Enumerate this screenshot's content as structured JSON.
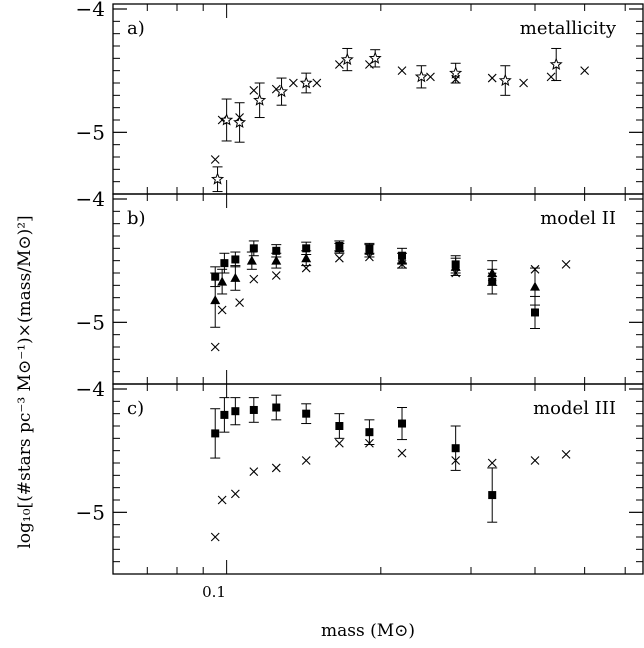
{
  "figure": {
    "xlabel": "mass (M⊙)",
    "ylabel": "log₁₀[(#stars pc⁻³ M⊙⁻¹)×(mass/M⊙)²]",
    "xtick_label": "0.1"
  },
  "chart_data": [
    {
      "type": "scatter",
      "panel_label": "a)",
      "title": "metallicity",
      "xlog": true,
      "xlim": [
        0.06,
        0.65
      ],
      "ylim": [
        -5.5,
        -4.0
      ],
      "yticks": [
        "-4",
        "-5"
      ],
      "series": [
        {
          "marker": "cross",
          "points": [
            [
              0.095,
              -5.22
            ],
            [
              0.098,
              -4.9
            ],
            [
              0.106,
              -4.88
            ],
            [
              0.113,
              -4.66
            ],
            [
              0.125,
              -4.65
            ],
            [
              0.135,
              -4.6
            ],
            [
              0.15,
              -4.6
            ],
            [
              0.166,
              -4.45
            ],
            [
              0.19,
              -4.45
            ],
            [
              0.22,
              -4.5
            ],
            [
              0.25,
              -4.55
            ],
            [
              0.28,
              -4.57
            ],
            [
              0.33,
              -4.56
            ],
            [
              0.38,
              -4.6
            ],
            [
              0.43,
              -4.55
            ],
            [
              0.5,
              -4.5
            ]
          ]
        },
        {
          "marker": "star",
          "points": [
            [
              0.096,
              -5.38
            ],
            [
              0.1,
              -4.9
            ],
            [
              0.106,
              -4.92
            ],
            [
              0.116,
              -4.74
            ],
            [
              0.128,
              -4.67
            ],
            [
              0.143,
              -4.6
            ],
            [
              0.172,
              -4.41
            ],
            [
              0.195,
              -4.4
            ],
            [
              0.24,
              -4.55
            ],
            [
              0.28,
              -4.52
            ],
            [
              0.35,
              -4.58
            ],
            [
              0.44,
              -4.45
            ]
          ],
          "errors": [
            0.1,
            0.17,
            0.16,
            0.14,
            0.11,
            0.08,
            0.09,
            0.07,
            0.09,
            0.08,
            0.12,
            0.13
          ]
        }
      ]
    },
    {
      "type": "scatter",
      "panel_label": "b)",
      "title": "model II",
      "xlog": true,
      "xlim": [
        0.06,
        0.65
      ],
      "ylim": [
        -5.5,
        -4.0
      ],
      "yticks": [
        "-4",
        "-5"
      ],
      "series": [
        {
          "marker": "cross",
          "points": [
            [
              0.095,
              -5.2
            ],
            [
              0.098,
              -4.9
            ],
            [
              0.106,
              -4.84
            ],
            [
              0.113,
              -4.65
            ],
            [
              0.125,
              -4.62
            ],
            [
              0.143,
              -4.56
            ],
            [
              0.166,
              -4.48
            ],
            [
              0.19,
              -4.47
            ],
            [
              0.22,
              -4.53
            ],
            [
              0.28,
              -4.6
            ],
            [
              0.33,
              -4.63
            ],
            [
              0.4,
              -4.57
            ],
            [
              0.46,
              -4.53
            ]
          ]
        },
        {
          "marker": "triangle",
          "points": [
            [
              0.095,
              -4.82
            ],
            [
              0.098,
              -4.67
            ],
            [
              0.104,
              -4.64
            ],
            [
              0.112,
              -4.5
            ],
            [
              0.125,
              -4.5
            ],
            [
              0.143,
              -4.48
            ],
            [
              0.166,
              -4.4
            ],
            [
              0.19,
              -4.42
            ],
            [
              0.22,
              -4.5
            ],
            [
              0.28,
              -4.55
            ],
            [
              0.33,
              -4.6
            ],
            [
              0.4,
              -4.71
            ]
          ],
          "errors": [
            0.22,
            0.1,
            0.1,
            0.07,
            0.06,
            0.06,
            0.04,
            0.05,
            0.06,
            0.07,
            0.1,
            0.15
          ]
        },
        {
          "marker": "square",
          "points": [
            [
              0.095,
              -4.63
            ],
            [
              0.099,
              -4.52
            ],
            [
              0.104,
              -4.49
            ],
            [
              0.113,
              -4.4
            ],
            [
              0.125,
              -4.42
            ],
            [
              0.143,
              -4.4
            ],
            [
              0.166,
              -4.38
            ],
            [
              0.19,
              -4.4
            ],
            [
              0.22,
              -4.46
            ],
            [
              0.28,
              -4.53
            ],
            [
              0.33,
              -4.67
            ],
            [
              0.4,
              -4.92
            ]
          ],
          "errors": [
            0.08,
            0.08,
            0.06,
            0.06,
            0.05,
            0.05,
            0.04,
            0.04,
            0.06,
            0.07,
            0.1,
            0.13
          ]
        }
      ]
    },
    {
      "type": "scatter",
      "panel_label": "c)",
      "title": "model III",
      "xlog": true,
      "xlim": [
        0.06,
        0.65
      ],
      "ylim": [
        -5.5,
        -4.0
      ],
      "yticks": [
        "-4",
        "-5"
      ],
      "series": [
        {
          "marker": "cross",
          "points": [
            [
              0.095,
              -5.2
            ],
            [
              0.098,
              -4.9
            ],
            [
              0.104,
              -4.85
            ],
            [
              0.113,
              -4.67
            ],
            [
              0.125,
              -4.64
            ],
            [
              0.143,
              -4.58
            ],
            [
              0.166,
              -4.44
            ],
            [
              0.19,
              -4.44
            ],
            [
              0.22,
              -4.52
            ],
            [
              0.28,
              -4.58
            ],
            [
              0.33,
              -4.6
            ],
            [
              0.4,
              -4.58
            ],
            [
              0.46,
              -4.53
            ]
          ]
        },
        {
          "marker": "square",
          "points": [
            [
              0.095,
              -4.36
            ],
            [
              0.099,
              -4.21
            ],
            [
              0.104,
              -4.18
            ],
            [
              0.113,
              -4.17
            ],
            [
              0.125,
              -4.15
            ],
            [
              0.143,
              -4.2
            ],
            [
              0.166,
              -4.3
            ],
            [
              0.19,
              -4.35
            ],
            [
              0.22,
              -4.28
            ],
            [
              0.28,
              -4.48
            ],
            [
              0.33,
              -4.86
            ]
          ],
          "errors": [
            0.2,
            0.14,
            0.11,
            0.1,
            0.1,
            0.08,
            0.1,
            0.1,
            0.13,
            0.18,
            0.22
          ]
        }
      ]
    }
  ]
}
